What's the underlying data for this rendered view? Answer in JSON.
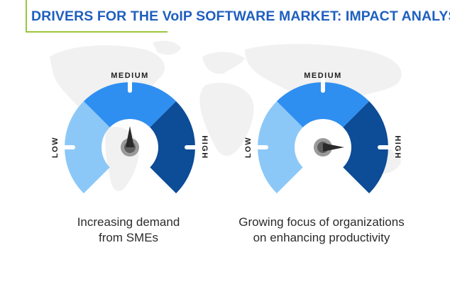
{
  "title": "DRIVERS FOR THE VoIP SOFTWARE MARKET: IMPACT ANALYSIS",
  "colors": {
    "title": "#1f5fbf",
    "accent_line": "#9bc63c",
    "low": "#8cc8f7",
    "medium": "#2f8ff0",
    "high": "#0d4c96",
    "map": "#f1f1f1",
    "label": "#1f1f1f",
    "caption": "#2b2b2b"
  },
  "scale_labels": {
    "low": "LOW",
    "medium": "MEDIUM",
    "high": "HIGH"
  },
  "gauges": [
    {
      "caption_lines": [
        "Increasing demand",
        "from SMEs"
      ],
      "impact": "medium",
      "needle_angle_deg": 90
    },
    {
      "caption_lines": [
        "Growing focus of organizations",
        "on enhancing productivity"
      ],
      "impact": "high",
      "needle_angle_deg": 0
    }
  ]
}
